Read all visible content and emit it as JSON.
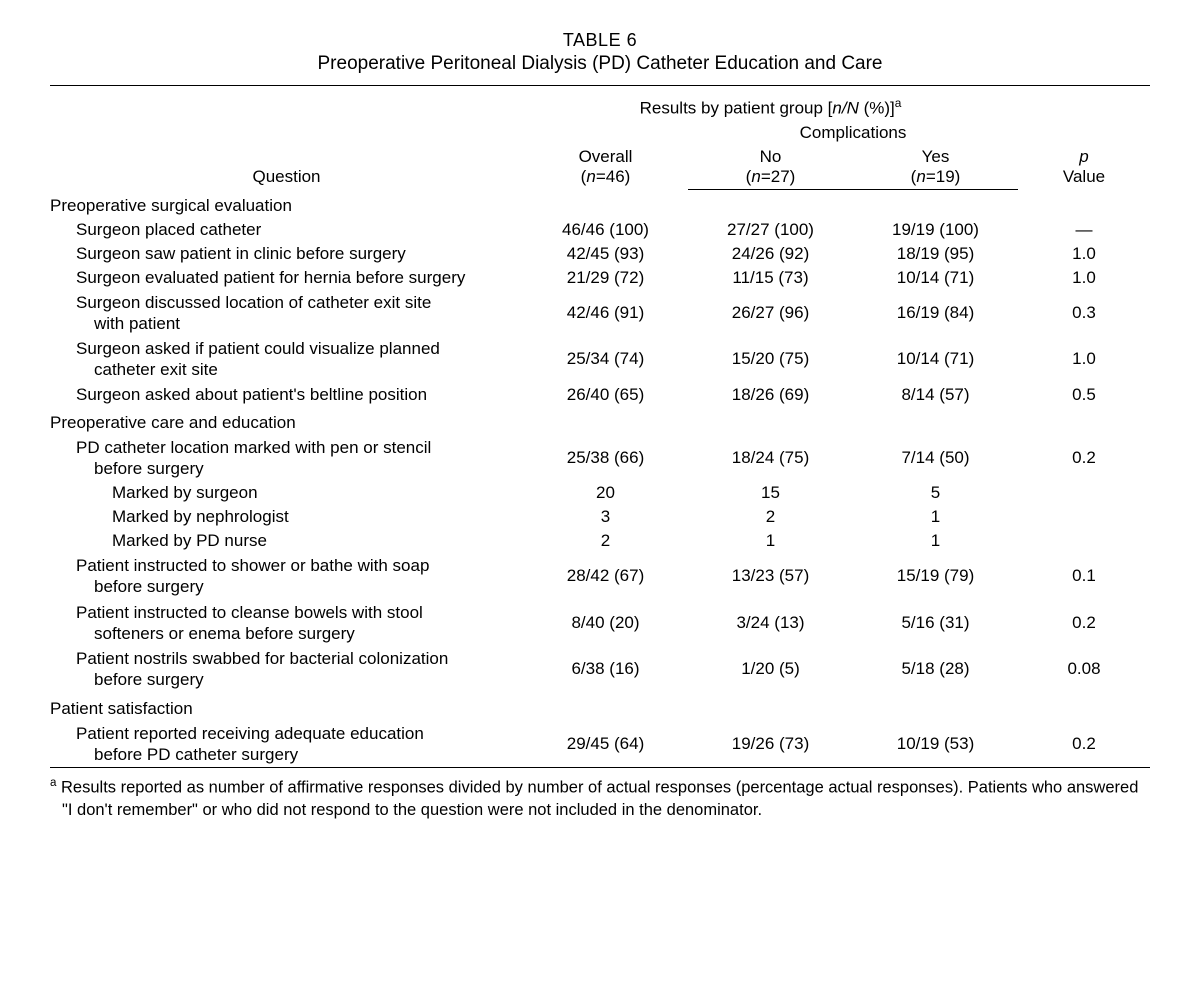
{
  "table_number": "TABLE 6",
  "title": "Preoperative Peritoneal Dialysis (PD) Catheter Education and Care",
  "header": {
    "results_span_prefix": "Results by patient group [",
    "results_span_ital": "n/N",
    "results_span_suffix": " (%)]",
    "results_span_sup": "a",
    "complications": "Complications",
    "question": "Question",
    "overall_line1": "Overall",
    "overall_line2_prefix": "(",
    "overall_line2_ital": "n",
    "overall_line2_suffix": "=46)",
    "no_line1": "No",
    "no_line2_prefix": "(",
    "no_line2_ital": "n",
    "no_line2_suffix": "=27)",
    "yes_line1": "Yes",
    "yes_line2_prefix": "(",
    "yes_line2_ital": "n",
    "yes_line2_suffix": "=19)",
    "p_line1_ital": "p",
    "p_line2": "Value"
  },
  "sections": [
    {
      "heading": "Preoperative surgical evaluation",
      "rows": [
        {
          "q": "Surgeon placed catheter",
          "ov": "46/46 (100)",
          "no": "27/27 (100)",
          "yes": "19/19 (100)",
          "p": "—"
        },
        {
          "q": "Surgeon saw patient in clinic before surgery",
          "ov": "42/45 (93)",
          "no": "24/26 (92)",
          "yes": "18/19 (95)",
          "p": "1.0"
        },
        {
          "q": "Surgeon evaluated patient for hernia before surgery",
          "ov": "21/29 (72)",
          "no": "11/15 (73)",
          "yes": "10/14 (71)",
          "p": "1.0"
        },
        {
          "q": "Surgeon discussed location of catheter exit site",
          "cont": "with patient",
          "ov": "42/46 (91)",
          "no": "26/27 (96)",
          "yes": "16/19 (84)",
          "p": "0.3"
        },
        {
          "q": "Surgeon asked if patient could visualize planned",
          "cont": "catheter exit site",
          "ov": "25/34 (74)",
          "no": "15/20 (75)",
          "yes": "10/14 (71)",
          "p": "1.0"
        },
        {
          "q": "Surgeon asked about patient's beltline position",
          "ov": "26/40 (65)",
          "no": "18/26 (69)",
          "yes": "8/14 (57)",
          "p": "0.5"
        }
      ]
    },
    {
      "heading": "Preoperative care and education",
      "rows": [
        {
          "q": "PD catheter location marked with pen or stencil",
          "cont": "before surgery",
          "ov": "25/38 (66)",
          "no": "18/24 (75)",
          "yes": "7/14 (50)",
          "p": "0.2"
        },
        {
          "q": "Marked by surgeon",
          "indent": 3,
          "ov": "20",
          "no": "15",
          "yes": "5",
          "p": ""
        },
        {
          "q": "Marked by nephrologist",
          "indent": 3,
          "ov": "3",
          "no": "2",
          "yes": "1",
          "p": ""
        },
        {
          "q": "Marked by PD nurse",
          "indent": 3,
          "ov": "2",
          "no": "1",
          "yes": "1",
          "p": ""
        },
        {
          "q": "Patient instructed to shower or bathe with soap",
          "cont": "before surgery",
          "ov": "28/42 (67)",
          "no": "13/23 (57)",
          "yes": "15/19 (79)",
          "p": "0.1"
        },
        {
          "q": "Patient instructed to cleanse bowels with stool",
          "cont": "softeners or enema before surgery",
          "ov": "8/40 (20)",
          "no": "3/24 (13)",
          "yes": "5/16 (31)",
          "p": "0.2"
        },
        {
          "q": "Patient nostrils swabbed for bacterial colonization",
          "cont": "before surgery",
          "ov": "6/38 (16)",
          "no": "1/20 (5)",
          "yes": "5/18 (28)",
          "p": "0.08"
        }
      ]
    },
    {
      "heading": "Patient satisfaction",
      "rows": [
        {
          "q": "Patient reported receiving adequate education",
          "cont": "before PD catheter surgery",
          "ov": "29/45 (64)",
          "no": "19/26 (73)",
          "yes": "10/19 (53)",
          "p": "0.2"
        }
      ]
    }
  ],
  "footnote": {
    "sup": "a",
    "text": " Results reported as number of affirmative responses divided by number of actual responses (percentage actual responses). Patients who answered \"I don't remember\" or who did not respond to the question were not included in the denominator."
  }
}
